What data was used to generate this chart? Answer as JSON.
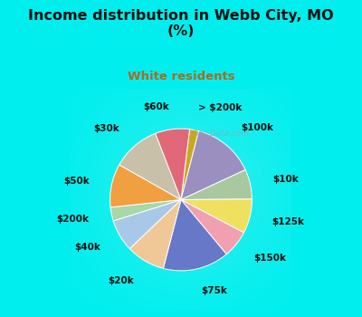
{
  "title": "Income distribution in Webb City, MO\n(%)",
  "subtitle": "White residents",
  "title_color": "#111111",
  "subtitle_color": "#b06820",
  "bg_cyan": "#00eeee",
  "bg_chart": "#d8f0e0",
  "labels": [
    "> $200k",
    "$100k",
    "$10k",
    "$125k",
    "$150k",
    "$75k",
    "$20k",
    "$40k",
    "$200k",
    "$50k",
    "$30k",
    "$60k"
  ],
  "values": [
    2.0,
    13.5,
    6.5,
    7.5,
    6.0,
    14.5,
    8.5,
    7.0,
    3.0,
    9.5,
    10.5,
    7.5
  ],
  "colors": [
    "#c8a820",
    "#9b8fc0",
    "#a8c8a0",
    "#f0e060",
    "#f0a0b0",
    "#6878c8",
    "#f0c898",
    "#a8c8e8",
    "#a8d8a8",
    "#f0a040",
    "#c8c0a8",
    "#e06878"
  ],
  "wedge_edge_color": "#ffffff",
  "label_fontsize": 7.5,
  "startangle": 83,
  "watermark": "City-Data.com"
}
